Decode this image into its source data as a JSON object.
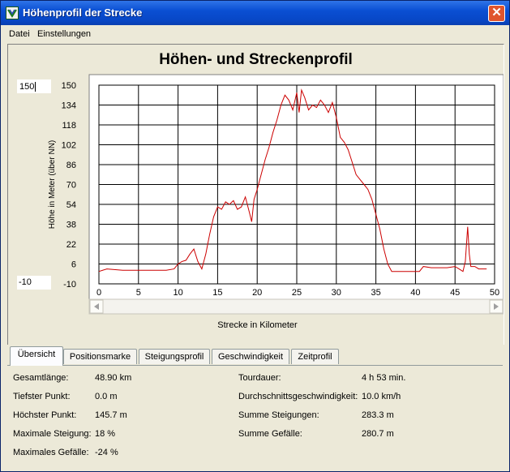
{
  "window": {
    "title": "Höhenprofil der Strecke",
    "close_glyph": "✕"
  },
  "menu": {
    "items": [
      "Datei",
      "Einstellungen"
    ]
  },
  "chart_controls": {
    "ymax": "150",
    "ymin": "-10"
  },
  "chart_data": {
    "type": "line",
    "title": "Höhen- und Streckenprofil",
    "xlabel": "Strecke in Kilometer",
    "ylabel": "Höhe in Meter (über NN)",
    "xlim": [
      0,
      50
    ],
    "ylim": [
      -10,
      150
    ],
    "x_ticks": [
      "0",
      "5",
      "10",
      "15",
      "20",
      "25",
      "30",
      "35",
      "40",
      "45",
      "50"
    ],
    "y_ticks": [
      "150",
      "134",
      "118",
      "102",
      "86",
      "70",
      "54",
      "38",
      "22",
      "6",
      "-10"
    ],
    "grid": true,
    "color": "#cc0000",
    "x": [
      0,
      1,
      3,
      5,
      7,
      8.5,
      9.5,
      10,
      10.5,
      11,
      11.5,
      12,
      12.5,
      13,
      13.5,
      14,
      14.5,
      15,
      15.5,
      16,
      16.5,
      17,
      17.5,
      18,
      18.5,
      19,
      19.3,
      19.6,
      20,
      20.5,
      21,
      21.5,
      22,
      22.5,
      23,
      23.5,
      24,
      24.5,
      25,
      25.3,
      25.6,
      26,
      26.5,
      27,
      27.5,
      28,
      28.5,
      29,
      29.5,
      30,
      30.5,
      31,
      31.5,
      32,
      32.5,
      33,
      33.5,
      34,
      34.5,
      35,
      35.5,
      36,
      36.5,
      37,
      38,
      39,
      40,
      40.5,
      41,
      42,
      43,
      44,
      45,
      45.5,
      46,
      46.3,
      46.6,
      46.8,
      47,
      47.5,
      48,
      49
    ],
    "y": [
      0,
      2,
      1,
      1,
      1,
      1,
      2,
      6,
      8,
      9,
      14,
      18,
      8,
      2,
      14,
      30,
      44,
      52,
      50,
      56,
      54,
      57,
      50,
      52,
      60,
      48,
      40,
      58,
      66,
      78,
      90,
      100,
      112,
      122,
      134,
      142,
      138,
      130,
      144,
      128,
      146,
      140,
      130,
      134,
      132,
      138,
      134,
      128,
      136,
      124,
      108,
      104,
      98,
      88,
      78,
      74,
      70,
      66,
      58,
      46,
      34,
      18,
      6,
      0,
      0,
      0,
      0,
      0,
      4,
      3,
      3,
      3,
      4,
      2,
      0,
      8,
      36,
      14,
      4,
      4,
      2,
      2
    ]
  },
  "tabs": [
    {
      "label": "Übersicht",
      "active": true
    },
    {
      "label": "Positionsmarke",
      "active": false
    },
    {
      "label": "Steigungsprofil",
      "active": false
    },
    {
      "label": "Geschwindigkeit",
      "active": false
    },
    {
      "label": "Zeitprofil",
      "active": false
    }
  ],
  "summary": {
    "left": [
      {
        "label": "Gesamtlänge:",
        "value": "48.90 km"
      },
      {
        "label": "Tiefster Punkt:",
        "value": "0.0 m"
      },
      {
        "label": "Höchster Punkt:",
        "value": "145.7 m"
      },
      {
        "label": "Maximale Steigung:",
        "value": "18 %"
      },
      {
        "label": "Maximales Gefälle:",
        "value": "-24 %"
      }
    ],
    "right": [
      {
        "label": "Tourdauer:",
        "value": "4 h 53 min."
      },
      {
        "label": "Durchschnittsgeschwindigkeit:",
        "value": "10.0 km/h"
      },
      {
        "label": "Summe Steigungen:",
        "value": "283.3 m"
      },
      {
        "label": "Summe Gefälle:",
        "value": "280.7 m"
      }
    ]
  }
}
